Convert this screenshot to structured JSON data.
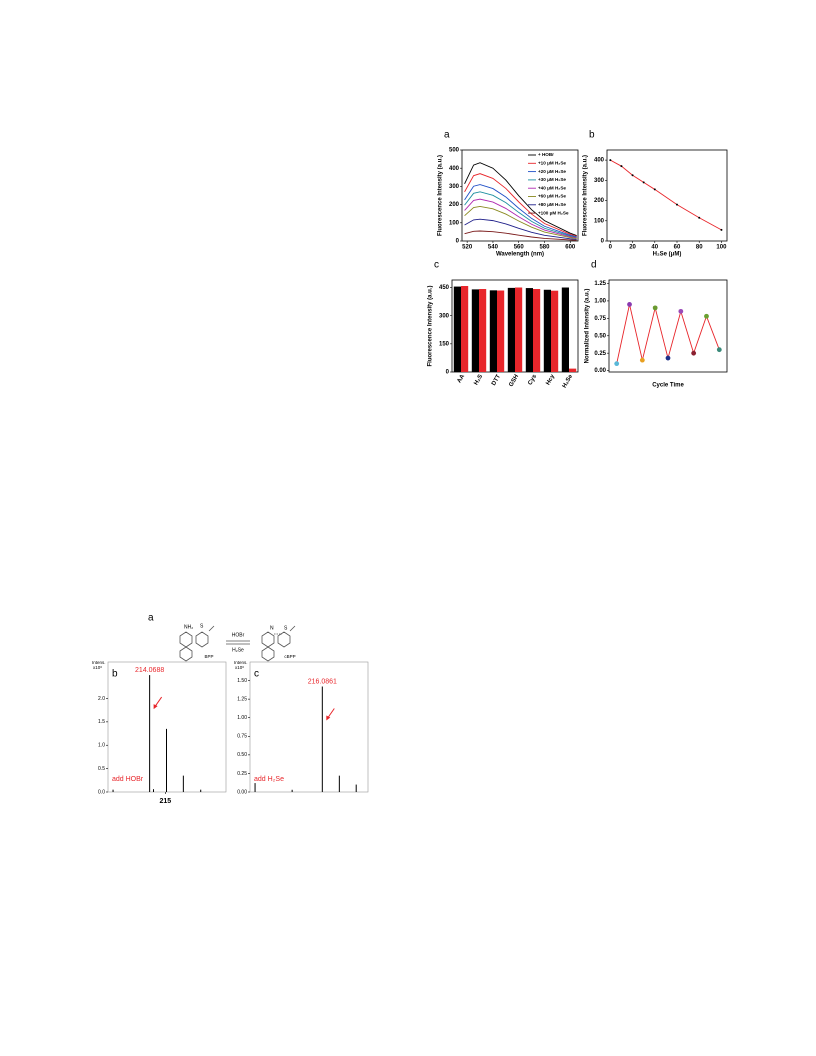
{
  "chart_data": [
    {
      "type": "line",
      "panel": "a",
      "xlabel": "Wavelength (nm)",
      "ylabel": "Fluorescence Intensity (a.u.)",
      "x": [
        518,
        525,
        530,
        540,
        550,
        560,
        570,
        580,
        600,
        605
      ],
      "xlim": [
        516,
        606
      ],
      "xticks": [
        520,
        540,
        560,
        580,
        600
      ],
      "ylim": [
        0,
        500
      ],
      "yticks": [
        0,
        100,
        200,
        300,
        400,
        500
      ],
      "legend": "upper right",
      "series": [
        {
          "name": "+ HOBr",
          "color": "#000000",
          "values": [
            314,
            417,
            430,
            400,
            335,
            249,
            172,
            112,
            43,
            30
          ]
        },
        {
          "name": "+10 μM H₂Se",
          "color": "#e8262b",
          "values": [
            270,
            359,
            370,
            344,
            289,
            215,
            148,
            96,
            37,
            26
          ]
        },
        {
          "name": "+20 μM H₂Se",
          "color": "#1f4fc7",
          "values": [
            226,
            301,
            310,
            288,
            242,
            180,
            124,
            81,
            31,
            22
          ]
        },
        {
          "name": "+30 μM H₂Se",
          "color": "#1d8fa0",
          "values": [
            197,
            262,
            270,
            251,
            211,
            157,
            108,
            70,
            27,
            19
          ]
        },
        {
          "name": "+40 μM H₂Se",
          "color": "#b02ab0",
          "values": [
            168,
            223,
            230,
            214,
            179,
            133,
            92,
            60,
            23,
            16
          ]
        },
        {
          "name": "+60 μM H₂Se",
          "color": "#8a8a20",
          "values": [
            139,
            184,
            190,
            177,
            148,
            110,
            76,
            49,
            19,
            13
          ]
        },
        {
          "name": "+80 μM H₂Se",
          "color": "#20208a",
          "values": [
            88,
            116,
            120,
            112,
            94,
            70,
            48,
            31,
            12,
            8
          ]
        },
        {
          "name": "+100 μM H₂Se",
          "color": "#7a1a1a",
          "values": [
            40,
            53,
            55,
            51,
            43,
            32,
            22,
            14,
            6,
            4
          ]
        }
      ]
    },
    {
      "type": "line",
      "panel": "b",
      "xlabel": "H₂Se (μM)",
      "ylabel": "Fluorescence Intensity (a.u.)",
      "x": [
        0,
        10,
        20,
        30,
        40,
        60,
        80,
        100
      ],
      "xlim": [
        -3,
        105
      ],
      "xticks": [
        0,
        20,
        40,
        60,
        80,
        100
      ],
      "ylim": [
        0,
        450
      ],
      "yticks": [
        0,
        100,
        200,
        300,
        400
      ],
      "markers": true,
      "series": [
        {
          "color": "#e8262b",
          "marker_color": "#000000",
          "values": [
            400,
            370,
            325,
            290,
            255,
            180,
            115,
            55
          ]
        }
      ]
    },
    {
      "type": "bar",
      "panel": "c",
      "ylabel": "Fluorescence Intensity (a.u.)",
      "categories": [
        "AA",
        "H₂S",
        "DTT",
        "GSH",
        "Cys",
        "Hcy",
        "H₂Se"
      ],
      "ylim": [
        0,
        490
      ],
      "yticks": [
        0,
        150,
        300,
        450
      ],
      "series": [
        {
          "color": "#000000",
          "values": [
            455,
            440,
            435,
            448,
            447,
            438,
            450
          ]
        },
        {
          "color": "#e8262b",
          "values": [
            458,
            442,
            434,
            450,
            442,
            433,
            18
          ]
        }
      ]
    },
    {
      "type": "line",
      "panel": "d",
      "xlabel": "Cycle Time",
      "ylabel": "Normalized Intensity (a.u.)",
      "x": [
        1,
        2,
        3,
        4,
        5,
        6,
        7,
        8,
        9
      ],
      "xlim": [
        0.4,
        9.6
      ],
      "markers": true,
      "ylim": [
        -0.02,
        1.3
      ],
      "yticks": [
        {
          "value": 0,
          "label": "0.00"
        },
        {
          "value": 0.25,
          "label": "0.25"
        },
        {
          "value": 0.5,
          "label": "0.50"
        },
        {
          "value": 0.75,
          "label": "0.75"
        },
        {
          "value": 1,
          "label": "1.00"
        },
        {
          "value": 1.25,
          "label": "1.25"
        }
      ],
      "series": [
        {
          "color": "#e8262b",
          "values": [
            0.1,
            0.95,
            0.15,
            0.9,
            0.18,
            0.85,
            0.25,
            0.78,
            0.3
          ],
          "marker_colors": [
            "#5ab8d8",
            "#8a3ab0",
            "#e8a020",
            "#6a9a30",
            "#20308a",
            "#9a4ab8",
            "#8a2030",
            "#6aa030",
            "#3a8a7a"
          ]
        }
      ]
    },
    {
      "type": "spectrum",
      "panel": "b",
      "ylabel": "Intens.",
      "yunit": "x10⁶",
      "color": "#000000",
      "x": [
        211.9,
        214.07,
        214.3,
        215.07,
        216.07,
        217.1
      ],
      "values": [
        0.05,
        2.5,
        0.06,
        1.35,
        0.35,
        0.05
      ],
      "xlim": [
        211.6,
        218.6
      ],
      "xticks": [
        215
      ],
      "ylim": [
        0,
        2.78
      ],
      "yticks": [
        {
          "value": 0,
          "label": "0.0"
        },
        {
          "value": 0.5,
          "label": "0.5"
        },
        {
          "value": 1,
          "label": "1.0"
        },
        {
          "value": 1.5,
          "label": "1.5"
        },
        {
          "value": 2,
          "label": "2.0"
        }
      ],
      "peak_label": "214.0688",
      "note": "add HOBr"
    },
    {
      "type": "spectrum",
      "panel": "c",
      "ylabel": "Intens.",
      "yunit": "x10⁶",
      "color": "#000000",
      "x": [
        212.1,
        214.3,
        216.09,
        217.1,
        218.1
      ],
      "values": [
        0.12,
        0.03,
        1.42,
        0.22,
        0.1
      ],
      "xlim": [
        211.8,
        218.8
      ],
      "ylim": [
        0,
        1.75
      ],
      "yticks": [
        {
          "value": 0,
          "label": "0.00"
        },
        {
          "value": 0.25,
          "label": "0.25"
        },
        {
          "value": 0.5,
          "label": "0.50"
        },
        {
          "value": 0.75,
          "label": "0.75"
        },
        {
          "value": 1,
          "label": "1.00"
        },
        {
          "value": 1.25,
          "label": "1.25"
        },
        {
          "value": 1.5,
          "label": "1.50"
        }
      ],
      "peak_label": "216.0861",
      "note": "add H₂Se"
    }
  ],
  "scheme": {
    "panel": "a",
    "reactant": "BPP",
    "product": "cBPP",
    "forward": "HOBr",
    "reverse": "H₂Se",
    "amine": "NH₂",
    "sulfur": [
      "S",
      "S"
    ],
    "nitrogen": "N"
  }
}
